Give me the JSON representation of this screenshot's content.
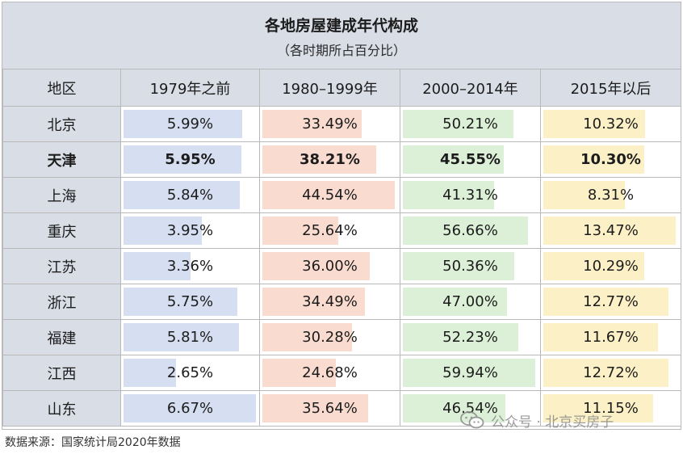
{
  "chart_data": {
    "type": "table",
    "title": "各地房屋建成年代构成",
    "subtitle": "（各时期所占百分比）",
    "region_header": "地区",
    "columns": [
      {
        "label": "1979年之前",
        "color": "#d6dff1"
      },
      {
        "label": "1980–1999年",
        "color": "#f9dccf"
      },
      {
        "label": "2000–2014年",
        "color": "#dcefd7"
      },
      {
        "label": "2015年以后",
        "color": "#fcf0c6"
      }
    ],
    "rows": [
      {
        "region": "北京",
        "bold": false,
        "values": [
          5.99,
          33.49,
          50.21,
          10.32
        ],
        "labels": [
          "5.99%",
          "33.49%",
          "50.21%",
          "10.32%"
        ]
      },
      {
        "region": "天津",
        "bold": true,
        "values": [
          5.95,
          38.21,
          45.55,
          10.3
        ],
        "labels": [
          "5.95%",
          "38.21%",
          "45.55%",
          "10.30%"
        ]
      },
      {
        "region": "上海",
        "bold": false,
        "values": [
          5.84,
          44.54,
          41.31,
          8.31
        ],
        "labels": [
          "5.84%",
          "44.54%",
          "41.31%",
          "8.31%"
        ]
      },
      {
        "region": "重庆",
        "bold": false,
        "values": [
          3.95,
          25.64,
          56.66,
          13.47
        ],
        "labels": [
          "3.95%",
          "25.64%",
          "56.66%",
          "13.47%"
        ]
      },
      {
        "region": "江苏",
        "bold": false,
        "values": [
          3.36,
          36.0,
          50.36,
          10.29
        ],
        "labels": [
          "3.36%",
          "36.00%",
          "50.36%",
          "10.29%"
        ]
      },
      {
        "region": "浙江",
        "bold": false,
        "values": [
          5.75,
          34.49,
          47.0,
          12.77
        ],
        "labels": [
          "5.75%",
          "34.49%",
          "47.00%",
          "12.77%"
        ]
      },
      {
        "region": "福建",
        "bold": false,
        "values": [
          5.81,
          30.28,
          52.23,
          11.67
        ],
        "labels": [
          "5.81%",
          "30.28%",
          "52.23%",
          "11.67%"
        ]
      },
      {
        "region": "江西",
        "bold": false,
        "values": [
          2.65,
          24.68,
          59.94,
          12.72
        ],
        "labels": [
          "2.65%",
          "24.68%",
          "59.94%",
          "12.72%"
        ]
      },
      {
        "region": "山东",
        "bold": false,
        "values": [
          6.67,
          35.64,
          46.54,
          11.15
        ],
        "labels": [
          "6.67%",
          "35.64%",
          "46.54%",
          "11.15%"
        ]
      }
    ]
  },
  "source": "数据来源：国家统计局2020年数据",
  "watermark": {
    "text": "公众号 · 北京买房子",
    "icon": "wechat-icon"
  }
}
